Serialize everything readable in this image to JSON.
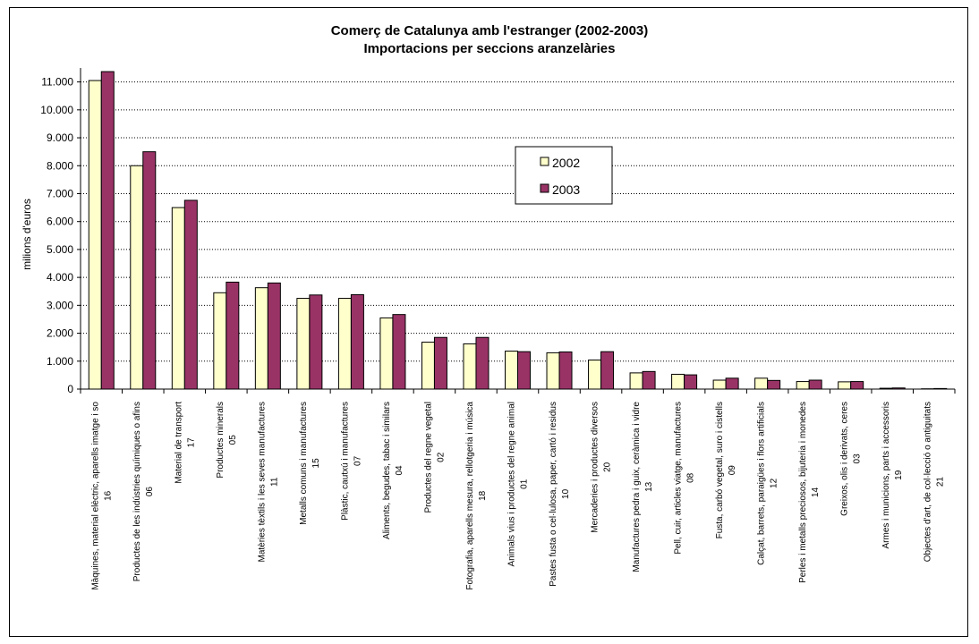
{
  "chart_data": {
    "type": "bar",
    "title": "Comerç de Catalunya amb l'estranger (2002-2003)",
    "subtitle": "Importacions per seccions aranzelàries",
    "ylabel": "milions d'euros",
    "ylim": [
      0,
      11500
    ],
    "yticks": [
      "0",
      "1.000",
      "2.000",
      "3.000",
      "4.000",
      "5.000",
      "6.000",
      "7.000",
      "8.000",
      "9.000",
      "10.000",
      "11.000"
    ],
    "grid": true,
    "legend_position": "center-right",
    "categories": [
      {
        "label": "Màquines, material elèctric, aparells imatge i so",
        "code": "16"
      },
      {
        "label": "Productes de les indústries químiques o afins",
        "code": "06"
      },
      {
        "label": "Material de transport",
        "code": "17"
      },
      {
        "label": "Productes minerals",
        "code": "05"
      },
      {
        "label": "Matèries tèxtils i les seves manufactures",
        "code": "11"
      },
      {
        "label": "Metalls comuns i manufactures",
        "code": "15"
      },
      {
        "label": "Plàstic, cautxú i manufactures",
        "code": "07"
      },
      {
        "label": "Aliments, begudes, tabac i similars",
        "code": "04"
      },
      {
        "label": "Productes del regne vegetal",
        "code": "02"
      },
      {
        "label": "Fotografia, aparells mesura, rellotgeria i música",
        "code": "18"
      },
      {
        "label": "Animals vius i productes del regne animal",
        "code": "01"
      },
      {
        "label": "Pastes fusta o cel·lulosa, paper, cartó i residus",
        "code": "10"
      },
      {
        "label": "Mercaderies i productes diversos",
        "code": "20"
      },
      {
        "label": "Manufactures pedra i guix, ceràmica i vidre",
        "code": "13"
      },
      {
        "label": "Pell, cuir, articles viatge, manufactures",
        "code": "08"
      },
      {
        "label": "Fusta, carbó vegetal, suro i cistells",
        "code": "09"
      },
      {
        "label": "Calçat, barrets, paraigües i flors artificials",
        "code": "12"
      },
      {
        "label": "Perles i metalls preciosos, bijuteria i monedes",
        "code": "14"
      },
      {
        "label": "Greixos, olis i derivats, ceres",
        "code": "03"
      },
      {
        "label": "Armes i municions, parts i accessoris",
        "code": "19"
      },
      {
        "label": "Objectes d'art, de col·lecció o antiguitats",
        "code": "21"
      }
    ],
    "series": [
      {
        "name": "2002",
        "color": "#ffffcc",
        "values": [
          11050,
          8000,
          6500,
          3450,
          3630,
          3250,
          3250,
          2550,
          1680,
          1620,
          1360,
          1300,
          1040,
          580,
          530,
          320,
          390,
          270,
          260,
          30,
          10
        ]
      },
      {
        "name": "2003",
        "color": "#993366",
        "values": [
          11370,
          8500,
          6760,
          3830,
          3800,
          3370,
          3380,
          2670,
          1850,
          1850,
          1340,
          1330,
          1340,
          630,
          510,
          390,
          310,
          320,
          270,
          40,
          20
        ]
      }
    ]
  }
}
